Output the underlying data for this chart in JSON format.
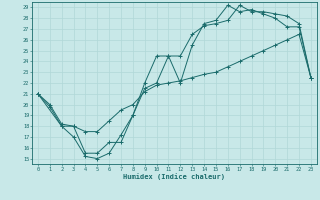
{
  "xlabel": "Humidex (Indice chaleur)",
  "xlim": [
    -0.5,
    23.5
  ],
  "ylim": [
    14.5,
    29.5
  ],
  "xticks": [
    0,
    1,
    2,
    3,
    4,
    5,
    6,
    7,
    8,
    9,
    10,
    11,
    12,
    13,
    14,
    15,
    16,
    17,
    18,
    19,
    20,
    21,
    22,
    23
  ],
  "yticks": [
    15,
    16,
    17,
    18,
    19,
    20,
    21,
    22,
    23,
    24,
    25,
    26,
    27,
    28,
    29
  ],
  "bg_color": "#c8e8e8",
  "line_color": "#1a6b6b",
  "grid_color": "#b0d8d8",
  "line1_x": [
    0,
    1,
    2,
    3,
    4,
    5,
    6,
    7,
    8,
    9,
    10,
    11,
    12,
    13,
    14,
    15,
    16,
    17,
    18,
    19,
    20,
    21,
    22,
    23
  ],
  "line1_y": [
    21.0,
    19.8,
    18.0,
    17.0,
    15.2,
    15.0,
    15.5,
    17.2,
    19.0,
    21.5,
    22.0,
    24.5,
    24.5,
    26.5,
    27.3,
    27.5,
    27.8,
    29.2,
    28.6,
    28.6,
    28.4,
    28.2,
    27.5,
    22.5
  ],
  "line2_x": [
    0,
    2,
    3,
    4,
    5,
    6,
    7,
    8,
    9,
    10,
    11,
    12,
    13,
    14,
    15,
    16,
    17,
    18,
    19,
    20,
    21,
    22,
    23
  ],
  "line2_y": [
    21.0,
    18.0,
    18.0,
    15.5,
    15.5,
    16.5,
    16.5,
    19.0,
    22.0,
    24.5,
    24.5,
    22.0,
    25.5,
    27.5,
    27.8,
    29.2,
    28.6,
    28.8,
    28.4,
    28.0,
    27.2,
    27.2,
    22.5
  ],
  "line3_x": [
    0,
    1,
    2,
    3,
    4,
    5,
    6,
    7,
    8,
    9,
    10,
    11,
    12,
    13,
    14,
    15,
    16,
    17,
    18,
    19,
    20,
    21,
    22,
    23
  ],
  "line3_y": [
    21.0,
    20.0,
    18.2,
    18.0,
    17.5,
    17.5,
    18.5,
    19.5,
    20.0,
    21.2,
    21.8,
    22.0,
    22.2,
    22.5,
    22.8,
    23.0,
    23.5,
    24.0,
    24.5,
    25.0,
    25.5,
    26.0,
    26.5,
    22.5
  ]
}
